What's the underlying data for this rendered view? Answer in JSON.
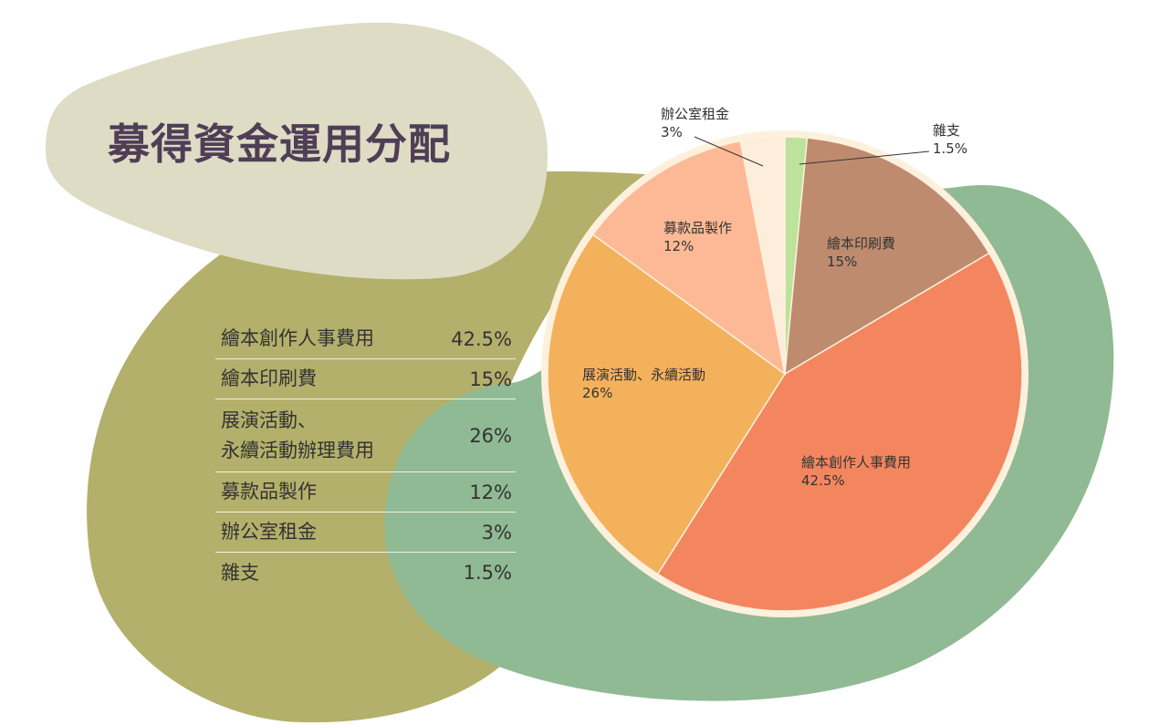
{
  "title": "募得資金運用分配",
  "legend_rows": [
    {
      "label": "繪本創作人事費用",
      "value": "42.5%"
    },
    {
      "label": "繪本印刷費",
      "value": "15%"
    },
    {
      "label": "展演活動、\n永續活動辦理費用",
      "value": "26%"
    },
    {
      "label": "募款品製作",
      "value": "12%"
    },
    {
      "label": "辦公室租金",
      "value": "3%"
    },
    {
      "label": "雜支",
      "value": "1.5%"
    }
  ],
  "chart_data": {
    "type": "pie",
    "slices": [
      {
        "label": "雜支",
        "value": 1.5,
        "value_label": "1.5%",
        "color": "#bde29b"
      },
      {
        "label": "繪本印刷費",
        "value": 15,
        "value_label": "15%",
        "color": "#be8b6f"
      },
      {
        "label": "繪本創作人事費用",
        "value": 42.5,
        "value_label": "42.5%",
        "color": "#f4865f"
      },
      {
        "label": "展演活動、永續活動",
        "value": 26,
        "value_label": "26%",
        "color": "#f3b15c"
      },
      {
        "label": "募款品製作",
        "value": 12,
        "value_label": "12%",
        "color": "#fdb996"
      },
      {
        "label": "辦公室租金",
        "value": 3,
        "value_label": "3%",
        "color": "#fdeedb"
      }
    ]
  },
  "colors": {
    "blob_title": "#dedcc4",
    "blob_olive": "#b3b06b",
    "blob_green": "#90ba93",
    "pie_rim": "#fdf1dd",
    "title_text": "#4f3e56"
  }
}
